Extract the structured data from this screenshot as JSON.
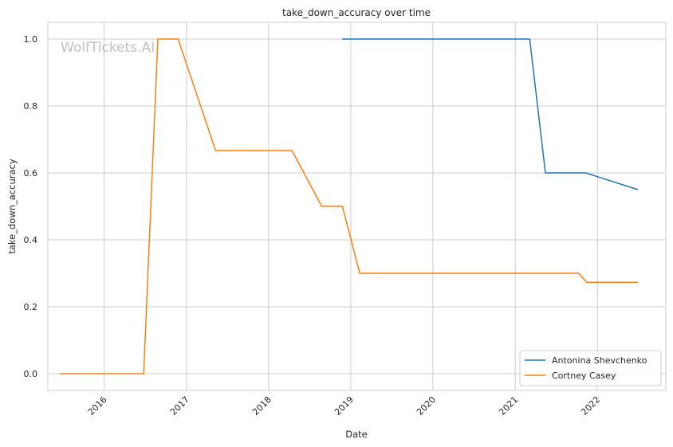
{
  "watermark": "WolfTickets.AI",
  "chart_data": {
    "type": "line",
    "title": "take_down_accuracy over time",
    "xlabel": "Date",
    "ylabel": "take_down_accuracy",
    "xlim": [
      "2015-04-26",
      "2022-11-01"
    ],
    "ylim": [
      -0.05,
      1.05
    ],
    "x_ticks": [
      "2016-01-01",
      "2017-01-01",
      "2018-01-01",
      "2019-01-01",
      "2020-01-01",
      "2021-01-01",
      "2022-01-01"
    ],
    "x_tick_labels": [
      "2016",
      "2017",
      "2018",
      "2019",
      "2020",
      "2021",
      "2022"
    ],
    "y_ticks": [
      0.0,
      0.2,
      0.4,
      0.6,
      0.8,
      1.0
    ],
    "y_tick_labels": [
      "0.0",
      "0.2",
      "0.4",
      "0.6",
      "0.8",
      "1.0"
    ],
    "grid": true,
    "legend_position": "lower-right",
    "series": [
      {
        "name": "Antonina Shevchenko",
        "color": "#1f77b4",
        "x": [
          "2018-11-25",
          "2021-03-06",
          "2021-05-15",
          "2021-11-10",
          "2022-06-30"
        ],
        "y": [
          1.0,
          1.0,
          0.6,
          0.6,
          0.55
        ]
      },
      {
        "name": "Cortney Casey",
        "color": "#ff7f0e",
        "x": [
          "2015-06-20",
          "2016-06-25",
          "2016-08-27",
          "2016-11-25",
          "2017-05-10",
          "2018-04-15",
          "2018-08-25",
          "2018-11-25",
          "2019-02-10",
          "2021-10-10",
          "2021-11-15",
          "2022-06-30"
        ],
        "y": [
          0.0,
          0.0,
          1.0,
          1.0,
          0.667,
          0.667,
          0.5,
          0.5,
          0.3,
          0.3,
          0.273,
          0.273
        ]
      }
    ]
  }
}
